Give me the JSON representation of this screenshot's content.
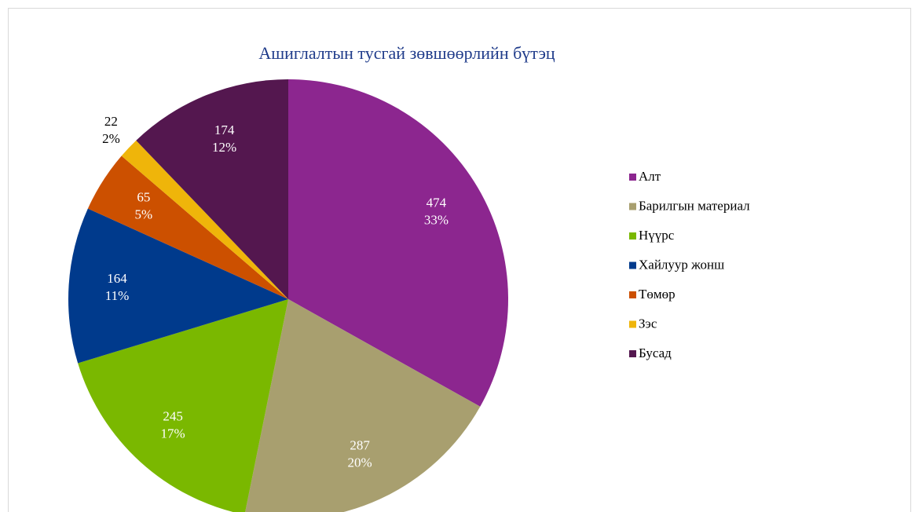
{
  "chart_data": {
    "type": "pie",
    "title": "Ашиглалтын тусгай зөвшөөрлийн бүтэц",
    "categories": [
      "Алт",
      "Барилгын материал",
      "Нүүрс",
      "Хайлуур жонш",
      "Төмөр",
      "Зэс",
      "Бусад"
    ],
    "values": [
      474,
      287,
      245,
      164,
      65,
      22,
      174
    ],
    "percent_labels": [
      "33%",
      "20%",
      "17%",
      "11%",
      "5%",
      "2%",
      "12%"
    ],
    "colors": [
      "#8c268f",
      "#a89f6f",
      "#7ab800",
      "#003a8c",
      "#cc5000",
      "#efb50a",
      "#54174f"
    ],
    "legend": "right"
  }
}
